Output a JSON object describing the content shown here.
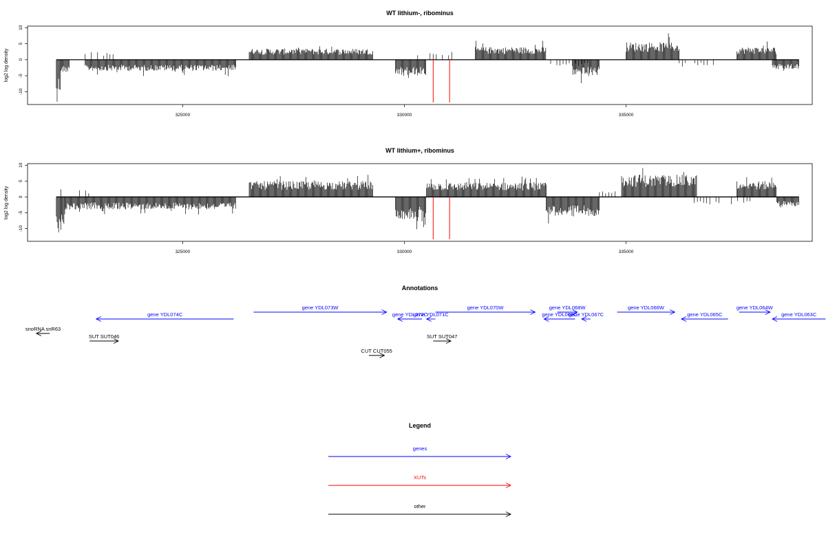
{
  "colors": {
    "genes": "#0000ff",
    "xuts": "#ff0000",
    "other": "#000000",
    "axis": "#000000"
  },
  "chart_data": [
    {
      "type": "bar",
      "title": "WT lithium-, ribominus",
      "ylabel": "log2 log density",
      "xlim": [
        321500,
        339200
      ],
      "ylim": [
        -14,
        10.5
      ],
      "xticks": [
        325000,
        330000,
        335000
      ],
      "yticks": [
        -10,
        -5,
        0,
        5,
        10
      ],
      "ytick_labels": [
        "-10",
        "-5",
        "0",
        "5",
        "10"
      ],
      "xtick_labels": [
        "325000",
        "330000",
        "335000"
      ],
      "segments": [
        {
          "start": 322150,
          "end": 322250,
          "strand": "minus",
          "amp": 11
        },
        {
          "start": 322250,
          "end": 322450,
          "strand": "minus",
          "amp": 4
        },
        {
          "start": 322800,
          "end": 323500,
          "strand": "plus",
          "amp": 2.5,
          "sparse": true
        },
        {
          "start": 322800,
          "end": 326200,
          "strand": "minus",
          "amp": 3.5
        },
        {
          "start": 326500,
          "end": 329300,
          "strand": "plus",
          "amp": 3.5
        },
        {
          "start": 329800,
          "end": 330500,
          "strand": "minus",
          "amp": 5
        },
        {
          "start": 330300,
          "end": 331200,
          "strand": "plus",
          "amp": 3,
          "sparse": true
        },
        {
          "start": 331600,
          "end": 333200,
          "strand": "plus",
          "amp": 4
        },
        {
          "start": 333300,
          "end": 334200,
          "strand": "minus",
          "amp": 2,
          "sparse": true
        },
        {
          "start": 333800,
          "end": 334400,
          "strand": "minus",
          "amp": 5
        },
        {
          "start": 335000,
          "end": 336200,
          "strand": "plus",
          "amp": 5.5
        },
        {
          "start": 336200,
          "end": 337000,
          "strand": "minus",
          "amp": 2,
          "sparse": true
        },
        {
          "start": 337500,
          "end": 338400,
          "strand": "plus",
          "amp": 4
        },
        {
          "start": 338300,
          "end": 338900,
          "strand": "minus",
          "amp": 3
        }
      ],
      "markers": [
        330650,
        331020
      ]
    },
    {
      "type": "bar",
      "title": "WT lithium+, ribominus",
      "ylabel": "log2 log density",
      "xlim": [
        321500,
        339200
      ],
      "ylim": [
        -14,
        10.5
      ],
      "xticks": [
        325000,
        330000,
        335000
      ],
      "yticks": [
        -10,
        -5,
        0,
        5,
        10
      ],
      "ytick_labels": [
        "-10",
        "-5",
        "0",
        "5",
        "10"
      ],
      "xtick_labels": [
        "325000",
        "330000",
        "335000"
      ],
      "segments": [
        {
          "start": 322150,
          "end": 322350,
          "strand": "minus",
          "amp": 12
        },
        {
          "start": 322250,
          "end": 322900,
          "strand": "plus",
          "amp": 2.5,
          "sparse": true
        },
        {
          "start": 322350,
          "end": 326200,
          "strand": "minus",
          "amp": 4
        },
        {
          "start": 326500,
          "end": 329300,
          "strand": "plus",
          "amp": 5
        },
        {
          "start": 329800,
          "end": 330500,
          "strand": "minus",
          "amp": 7
        },
        {
          "start": 330500,
          "end": 333200,
          "strand": "plus",
          "amp": 4.5
        },
        {
          "start": 333200,
          "end": 334400,
          "strand": "minus",
          "amp": 6
        },
        {
          "start": 334400,
          "end": 334900,
          "strand": "plus",
          "amp": 2,
          "sparse": true
        },
        {
          "start": 334900,
          "end": 336600,
          "strand": "plus",
          "amp": 7
        },
        {
          "start": 336400,
          "end": 337800,
          "strand": "minus",
          "amp": 2.5,
          "sparse": true
        },
        {
          "start": 337500,
          "end": 338400,
          "strand": "plus",
          "amp": 5
        },
        {
          "start": 338400,
          "end": 338900,
          "strand": "minus",
          "amp": 3
        }
      ],
      "markers": [
        330650,
        331020
      ]
    }
  ],
  "annotations": {
    "title": "Annotations",
    "features": [
      {
        "label": "snoRNA snR63",
        "start": 322000,
        "end": 321700,
        "row": 3,
        "kind": "other"
      },
      {
        "label": "SUT SUT046",
        "start": 322900,
        "end": 323550,
        "row": 4,
        "kind": "other"
      },
      {
        "label": "gene YDL074C",
        "start": 326150,
        "end": 323050,
        "row": 2,
        "kind": "genes"
      },
      {
        "label": "gene YDL073W",
        "start": 326600,
        "end": 329600,
        "row": 1,
        "kind": "genes"
      },
      {
        "label": "CUT CUT055",
        "start": 329200,
        "end": 329550,
        "row": 5,
        "kind": "other"
      },
      {
        "label": "gene YDL072C",
        "start": 330400,
        "end": 329850,
        "row": 2,
        "kind": "genes"
      },
      {
        "label": "gene YDL071C",
        "start": 330700,
        "end": 330500,
        "row": 2,
        "kind": "genes"
      },
      {
        "label": "SUT SUT047",
        "start": 330650,
        "end": 331050,
        "row": 4,
        "kind": "other"
      },
      {
        "label": "gene YDL070W",
        "start": 330700,
        "end": 332950,
        "row": 1,
        "kind": "genes"
      },
      {
        "label": "gene YDL068W",
        "start": 333450,
        "end": 333900,
        "row": 1,
        "kind": "genes"
      },
      {
        "label": "gene YDL069C",
        "start": 333850,
        "end": 333150,
        "row": 2,
        "kind": "genes"
      },
      {
        "label": "gene YDL067C",
        "start": 334200,
        "end": 334000,
        "row": 2,
        "kind": "genes"
      },
      {
        "label": "gene YDL066W",
        "start": 334800,
        "end": 336100,
        "row": 1,
        "kind": "genes"
      },
      {
        "label": "gene YDL065C",
        "start": 337300,
        "end": 336250,
        "row": 2,
        "kind": "genes"
      },
      {
        "label": "gene YDL064W",
        "start": 337550,
        "end": 338250,
        "row": 1,
        "kind": "genes"
      },
      {
        "label": "gene YDL063C",
        "start": 339500,
        "end": 338300,
        "row": 2,
        "kind": "genes"
      }
    ]
  },
  "legend": {
    "title": "Legend",
    "items": [
      {
        "label": "genes",
        "kind": "genes"
      },
      {
        "label": "XUTs",
        "kind": "xuts"
      },
      {
        "label": "other",
        "kind": "other"
      }
    ]
  }
}
